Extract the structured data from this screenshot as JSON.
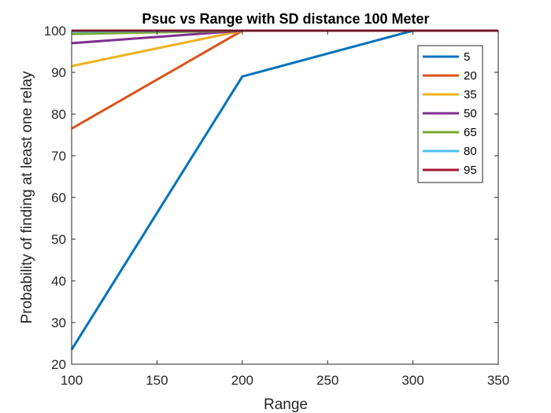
{
  "chart_data": {
    "type": "line",
    "title": "Psuc vs Range with SD distance 100 Meter",
    "xlabel": "Range",
    "ylabel": "Probability of finding at least one relay",
    "xlim": [
      100,
      350
    ],
    "ylim": [
      20,
      100
    ],
    "x_ticks": [
      "100",
      "150",
      "200",
      "250",
      "300",
      "350"
    ],
    "y_ticks": [
      "20",
      "30",
      "40",
      "50",
      "60",
      "70",
      "80",
      "90",
      "100"
    ],
    "grid": false,
    "legend_position": "top-right",
    "x": [
      100,
      200,
      300,
      350
    ],
    "series": [
      {
        "name": "5",
        "color": "#0072BD",
        "values": [
          23.5,
          89,
          100,
          100
        ]
      },
      {
        "name": "20",
        "color": "#D95319",
        "values": [
          76.5,
          100,
          100,
          100
        ]
      },
      {
        "name": "35",
        "color": "#EDB120",
        "values": [
          91.5,
          100,
          100,
          100
        ]
      },
      {
        "name": "50",
        "color": "#7E2F8E",
        "values": [
          97,
          100,
          100,
          100
        ]
      },
      {
        "name": "65",
        "color": "#77AC30",
        "values": [
          99.2,
          100,
          100,
          100
        ]
      },
      {
        "name": "80",
        "color": "#4DBEEE",
        "values": [
          99.8,
          100,
          100,
          100
        ]
      },
      {
        "name": "95",
        "color": "#A2142F",
        "values": [
          100,
          100,
          100,
          100
        ]
      }
    ]
  }
}
